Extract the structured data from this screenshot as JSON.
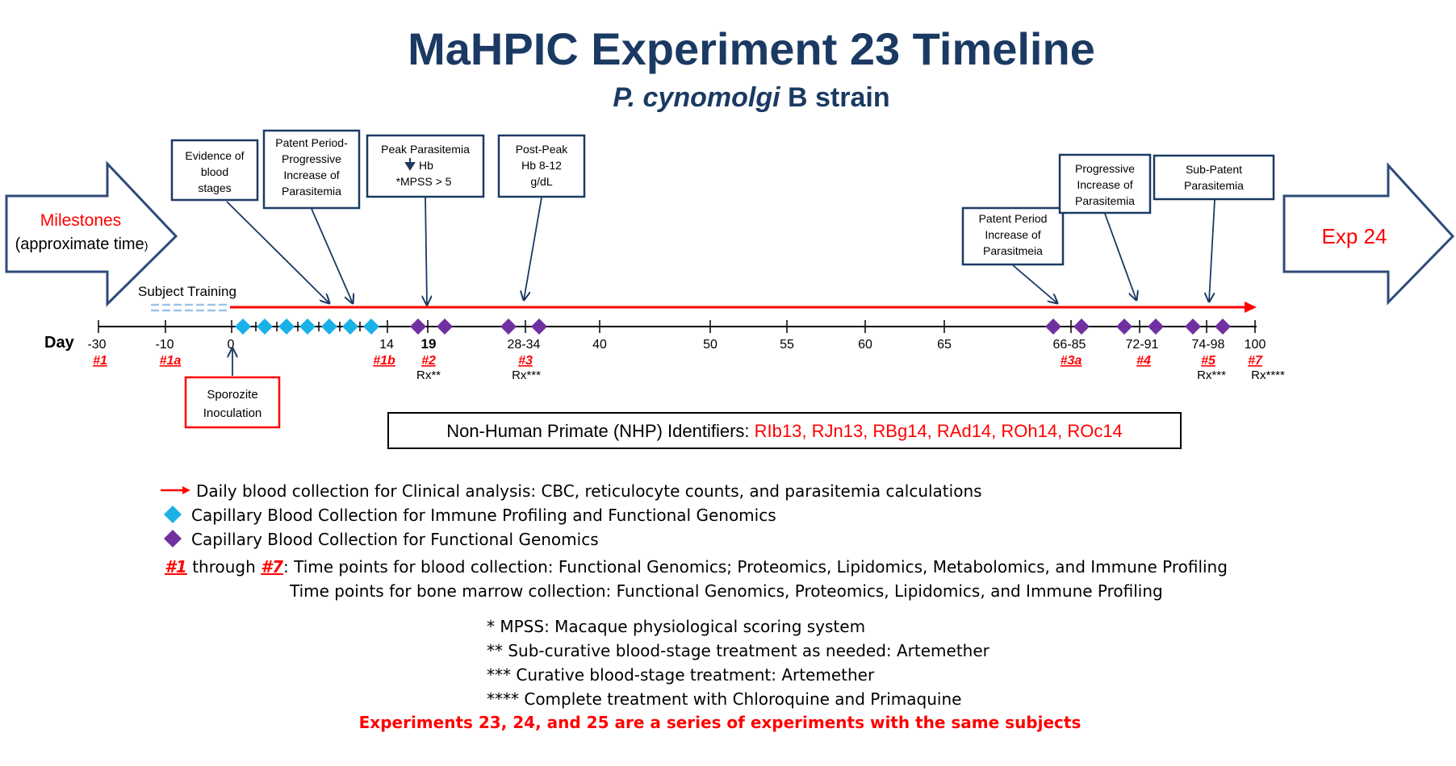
{
  "title": "MaHPIC Experiment 23 Timeline",
  "subtitle": {
    "species": "P. cynomolgi",
    "strain": " B strain"
  },
  "colors": {
    "navy": "#1b3a63",
    "arrow_border": "#2e4a7a",
    "red": "#ff0000",
    "cyan": "#1ab0e8",
    "purple": "#7030a0",
    "training_dash": "#9dc3e6"
  },
  "milestones_arrow": {
    "label": "Milestones",
    "sub_open": "(approximate time",
    "sub_close": ")"
  },
  "next_arrow": {
    "label": "Exp 24"
  },
  "day_label": "Day",
  "subject_training": "Subject Training",
  "ticks": [
    "-30",
    "-10",
    "0",
    "14",
    "19",
    "28-34",
    "40",
    "50",
    "55",
    "60",
    "65",
    "66-85",
    "72-91",
    "74-98",
    "100"
  ],
  "timepoints": [
    "#1",
    "#1a",
    "#1b",
    "#2",
    "#3",
    "#3a",
    "#4",
    "#5",
    "#7"
  ],
  "rx_labels": [
    "Rx**",
    "Rx***",
    "Rx***",
    "Rx****"
  ],
  "boxes": {
    "evidence": [
      "Evidence of",
      "blood",
      "stages"
    ],
    "patent": [
      "Patent Period-",
      "Progressive",
      "Increase of",
      "Parasitemia"
    ],
    "peak": [
      "Peak Parasitemia",
      "Hb",
      "*MPSS > 5"
    ],
    "postpeak": [
      "Post-Peak",
      "Hb 8-12",
      "g/dL"
    ],
    "patent2": [
      "Patent Period",
      "Increase of",
      "Parasitmeia"
    ],
    "progressive": [
      "Progressive",
      "Increase of",
      "Parasitemia"
    ],
    "subpatent": [
      "Sub-Patent",
      "Parasitemia"
    ],
    "sporozoite": [
      "Sporozite",
      "Inoculation"
    ]
  },
  "nhp": {
    "label": "Non-Human Primate (NHP) Identifiers: ",
    "ids": "RIb13, RJn13, RBg14, RAd14, ROh14, ROc14"
  },
  "legend": {
    "daily": "Daily blood collection for Clinical analysis: CBC, reticulocyte counts, and parasitemia calculations",
    "cyan": "Capillary Blood Collection for Immune Profiling and Functional Genomics",
    "purple": "Capillary Blood Collection for Functional Genomics"
  },
  "timepoint_note": {
    "from": "#1",
    "mid": " through ",
    "to": "#7",
    "line1": ": Time points for blood collection: Functional Genomics; Proteomics, Lipidomics, Metabolomics, and Immune Profiling",
    "line2": "Time points for bone marrow collection: Functional Genomics, Proteomics, Lipidomics, and Immune Profiling"
  },
  "footnotes": [
    "* MPSS: Macaque physiological scoring system",
    "** Sub-curative blood-stage treatment as needed: Artemether",
    "*** Curative blood-stage treatment: Artemether",
    "**** Complete treatment with Chloroquine and Primaquine"
  ],
  "series_note": "Experiments 23, 24, and 25 are a series of experiments with the same subjects"
}
